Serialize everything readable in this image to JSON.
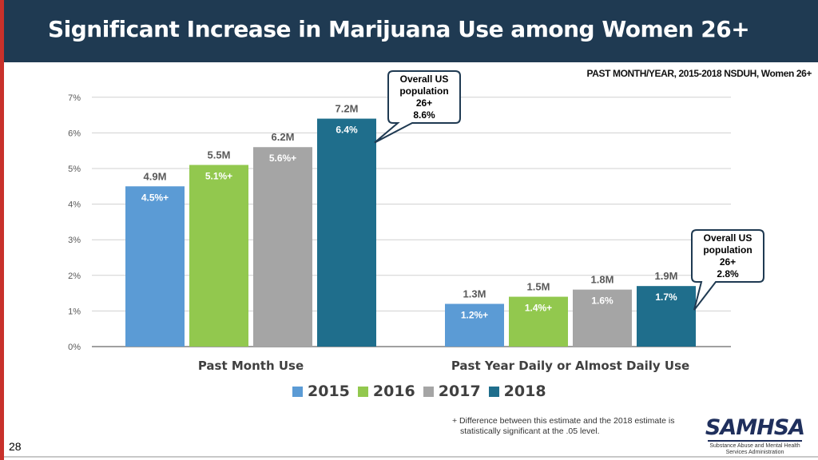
{
  "header": {
    "title": "Significant Increase in Marijuana Use among Women 26+"
  },
  "source_note": "PAST MONTH/YEAR, 2015-2018 NSDUH, Women 26+",
  "colors": {
    "header_bg": "#1f3a52",
    "accent_red": "#c8312b",
    "2015": "#5b9bd5",
    "2016": "#92c84e",
    "2017": "#a5a5a5",
    "2018": "#1f6e8c"
  },
  "chart_data": {
    "type": "bar",
    "title": "Significant Increase in Marijuana Use among Women 26+",
    "categories": [
      "Past Month Use",
      "Past Year Daily or Almost Daily Use"
    ],
    "ylim": [
      0,
      7
    ],
    "yticks": [
      "0%",
      "1%",
      "2%",
      "3%",
      "4%",
      "5%",
      "6%",
      "7%"
    ],
    "grid": true,
    "series": [
      {
        "name": "2015",
        "values": [
          4.5,
          1.2
        ],
        "labels": [
          "4.5%+",
          "1.2%+"
        ],
        "counts": [
          "4.9M",
          "1.3M"
        ]
      },
      {
        "name": "2016",
        "values": [
          5.1,
          1.4
        ],
        "labels": [
          "5.1%+",
          "1.4%+"
        ],
        "counts": [
          "5.5M",
          "1.5M"
        ]
      },
      {
        "name": "2017",
        "values": [
          5.6,
          1.6
        ],
        "labels": [
          "5.6%+",
          "1.6%"
        ],
        "counts": [
          "6.2M",
          "1.8M"
        ]
      },
      {
        "name": "2018",
        "values": [
          6.4,
          1.7
        ],
        "labels": [
          "6.4%",
          "1.7%"
        ],
        "counts": [
          "7.2M",
          "1.9M"
        ]
      }
    ],
    "callouts": [
      {
        "lines": [
          "Overall US",
          "population",
          "26+",
          "8.6%"
        ],
        "group": 0
      },
      {
        "lines": [
          "Overall US",
          "population",
          "26+",
          "2.8%"
        ],
        "group": 1
      }
    ],
    "legend_position": "bottom"
  },
  "footnote": {
    "line1": "+ Difference between this estimate and the 2018 estimate is",
    "line2": "statistically significant at the .05 level."
  },
  "logo": {
    "word": "SAMHSA",
    "line1": "Substance Abuse and Mental Health",
    "line2": "Services Administration"
  },
  "page_number": "28"
}
